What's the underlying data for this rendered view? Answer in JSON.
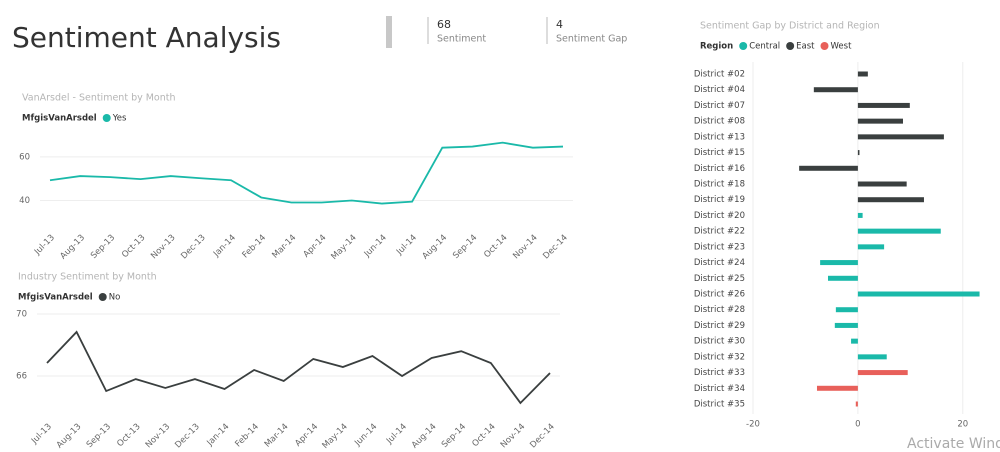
{
  "header": {
    "title": "Sentiment Analysis"
  },
  "cards": [
    {
      "value": "68",
      "label": "Sentiment"
    },
    {
      "value": "4",
      "label": "Sentiment Gap"
    }
  ],
  "watermark": "Activate Windows",
  "chart_data": [
    {
      "type": "line",
      "title": "VanArsdel - Sentiment by Month",
      "legend_title": "MfgisVanArsdel",
      "categories": [
        "Jul-13",
        "Aug-13",
        "Sep-13",
        "Oct-13",
        "Nov-13",
        "Dec-13",
        "Jan-14",
        "Feb-14",
        "Mar-14",
        "Apr-14",
        "May-14",
        "Jun-14",
        "Jul-14",
        "Aug-14",
        "Sep-14",
        "Oct-14",
        "Nov-14",
        "Dec-14"
      ],
      "series": [
        {
          "name": "Yes",
          "color": "#1ab9a9",
          "values": [
            49.3,
            51.2,
            50.7,
            49.8,
            51.2,
            50.2,
            49.3,
            41.4,
            39.1,
            39.1,
            40,
            38.6,
            39.5,
            64.2,
            64.7,
            66.5,
            64.2,
            64.7
          ]
        }
      ],
      "ylim": [
        32,
        70
      ],
      "yticks": [
        40,
        60
      ],
      "grid": true
    },
    {
      "type": "line",
      "title": "Industry Sentiment by Month",
      "legend_title": "MfgisVanArsdel",
      "categories": [
        "Jul-13",
        "Aug-13",
        "Sep-13",
        "Oct-13",
        "Nov-13",
        "Dec-13",
        "Jan-14",
        "Feb-14",
        "Mar-14",
        "Apr-14",
        "May-14",
        "Jun-14",
        "Jul-14",
        "Aug-14",
        "Sep-14",
        "Oct-14",
        "Nov-14",
        "Dec-14"
      ],
      "series": [
        {
          "name": "No",
          "color": "#3a3f3f",
          "values": [
            66.84,
            68.84,
            65.03,
            65.8,
            65.23,
            65.8,
            65.16,
            66.39,
            65.68,
            67.1,
            66.58,
            67.29,
            66,
            67.16,
            67.6,
            66.84,
            64.26,
            66.19
          ]
        }
      ],
      "ylim": [
        64,
        70
      ],
      "yticks": [
        66,
        70
      ],
      "grid": true
    },
    {
      "type": "hbar",
      "title": "Sentiment Gap by District and Region",
      "legend_title": "Region",
      "categories": [
        "District #02",
        "District #04",
        "District #07",
        "District #08",
        "District #13",
        "District #15",
        "District #16",
        "District #18",
        "District #19",
        "District #20",
        "District #22",
        "District #23",
        "District #24",
        "District #25",
        "District #26",
        "District #28",
        "District #29",
        "District #30",
        "District #32",
        "District #33",
        "District #34",
        "District #35"
      ],
      "series": [
        {
          "name": "Central",
          "color": "#1ab9a9",
          "values": [
            null,
            null,
            null,
            null,
            null,
            null,
            null,
            null,
            null,
            0.9,
            15.8,
            5,
            -7.2,
            -5.7,
            23.2,
            -4.2,
            -4.4,
            -1.3,
            5.5,
            null,
            null,
            null
          ]
        },
        {
          "name": "East",
          "color": "#3a3f3f",
          "values": [
            1.9,
            -8.4,
            9.9,
            8.6,
            16.4,
            0.3,
            -11.2,
            9.3,
            12.6,
            null,
            null,
            null,
            null,
            null,
            null,
            null,
            null,
            null,
            null,
            null,
            null,
            null
          ]
        },
        {
          "name": "West",
          "color": "#e8605a",
          "values": [
            null,
            null,
            null,
            null,
            null,
            null,
            null,
            null,
            null,
            null,
            null,
            null,
            null,
            null,
            null,
            null,
            null,
            null,
            null,
            9.5,
            -7.8,
            -0.4
          ]
        }
      ],
      "xlim": [
        -20,
        25
      ],
      "xticks": [
        -20,
        0,
        20
      ],
      "grid": true
    }
  ]
}
